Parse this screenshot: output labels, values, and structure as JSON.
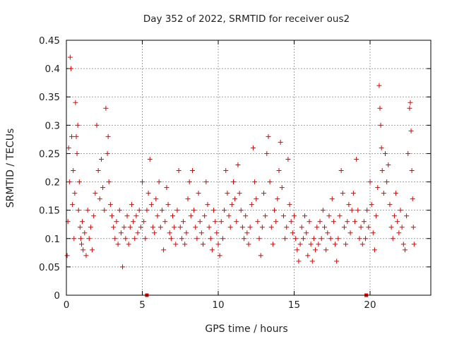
{
  "chart_data": {
    "type": "scatter",
    "title": "Day 352 of 2022, SRMTID for receiver ous2",
    "xlabel": "GPS time / hours",
    "ylabel": "SRMTID / TECUs",
    "xlim": [
      0,
      24
    ],
    "ylim": [
      0,
      0.45
    ],
    "xticks": [
      0,
      5,
      10,
      15,
      20
    ],
    "yticks": [
      0,
      0.05,
      0.1,
      0.15,
      0.2,
      0.25,
      0.3,
      0.35,
      0.4,
      0.45
    ],
    "xtick_labels": [
      "0",
      "5",
      "10",
      "15",
      "20"
    ],
    "ytick_labels": [
      "0",
      "0.05",
      "0.1",
      "0.15",
      "0.2",
      "0.25",
      "0.3",
      "0.35",
      "0.4",
      "0.45"
    ],
    "grid": true,
    "marker": "+",
    "color": "#e00000",
    "baseline_markers_x": [
      5.3,
      19.75
    ],
    "series": [
      {
        "name": "ous2",
        "points": [
          [
            0.05,
            0.07
          ],
          [
            0.1,
            0.13
          ],
          [
            0.15,
            0.26
          ],
          [
            0.2,
            0.2
          ],
          [
            0.25,
            0.42
          ],
          [
            0.3,
            0.4
          ],
          [
            0.35,
            0.28
          ],
          [
            0.4,
            0.16
          ],
          [
            0.45,
            0.22
          ],
          [
            0.5,
            0.1
          ],
          [
            0.55,
            0.18
          ],
          [
            0.6,
            0.34
          ],
          [
            0.65,
            0.28
          ],
          [
            0.7,
            0.25
          ],
          [
            0.75,
            0.3
          ],
          [
            0.8,
            0.15
          ],
          [
            0.85,
            0.2
          ],
          [
            0.9,
            0.12
          ],
          [
            0.95,
            0.1
          ],
          [
            1.0,
            0.09
          ],
          [
            1.05,
            0.13
          ],
          [
            1.1,
            0.08
          ],
          [
            1.2,
            0.11
          ],
          [
            1.3,
            0.07
          ],
          [
            1.4,
            0.15
          ],
          [
            1.5,
            0.1
          ],
          [
            1.6,
            0.12
          ],
          [
            1.7,
            0.08
          ],
          [
            1.8,
            0.14
          ],
          [
            1.9,
            0.18
          ],
          [
            2.0,
            0.3
          ],
          [
            2.1,
            0.22
          ],
          [
            2.2,
            0.17
          ],
          [
            2.3,
            0.24
          ],
          [
            2.4,
            0.19
          ],
          [
            2.5,
            0.15
          ],
          [
            2.6,
            0.33
          ],
          [
            2.7,
            0.25
          ],
          [
            2.75,
            0.28
          ],
          [
            2.8,
            0.2
          ],
          [
            2.9,
            0.16
          ],
          [
            3.0,
            0.14
          ],
          [
            3.1,
            0.12
          ],
          [
            3.2,
            0.1
          ],
          [
            3.3,
            0.13
          ],
          [
            3.4,
            0.09
          ],
          [
            3.5,
            0.15
          ],
          [
            3.6,
            0.11
          ],
          [
            3.7,
            0.05
          ],
          [
            3.8,
            0.12
          ],
          [
            3.9,
            0.1
          ],
          [
            4.0,
            0.14
          ],
          [
            4.1,
            0.09
          ],
          [
            4.2,
            0.12
          ],
          [
            4.3,
            0.16
          ],
          [
            4.4,
            0.13
          ],
          [
            4.5,
            0.1
          ],
          [
            4.6,
            0.14
          ],
          [
            4.7,
            0.11
          ],
          [
            4.8,
            0.15
          ],
          [
            4.9,
            0.12
          ],
          [
            5.0,
            0.2
          ],
          [
            5.1,
            0.13
          ],
          [
            5.2,
            0.1
          ],
          [
            5.3,
            0.15
          ],
          [
            5.4,
            0.18
          ],
          [
            5.5,
            0.24
          ],
          [
            5.6,
            0.16
          ],
          [
            5.7,
            0.12
          ],
          [
            5.8,
            0.11
          ],
          [
            5.9,
            0.17
          ],
          [
            6.0,
            0.14
          ],
          [
            6.1,
            0.2
          ],
          [
            6.2,
            0.12
          ],
          [
            6.3,
            0.15
          ],
          [
            6.4,
            0.08
          ],
          [
            6.5,
            0.13
          ],
          [
            6.6,
            0.19
          ],
          [
            6.7,
            0.16
          ],
          [
            6.8,
            0.11
          ],
          [
            6.9,
            0.1
          ],
          [
            7.0,
            0.14
          ],
          [
            7.1,
            0.12
          ],
          [
            7.2,
            0.09
          ],
          [
            7.3,
            0.15
          ],
          [
            7.4,
            0.22
          ],
          [
            7.5,
            0.12
          ],
          [
            7.6,
            0.1
          ],
          [
            7.7,
            0.13
          ],
          [
            7.8,
            0.09
          ],
          [
            7.9,
            0.11
          ],
          [
            8.0,
            0.17
          ],
          [
            8.1,
            0.2
          ],
          [
            8.2,
            0.14
          ],
          [
            8.3,
            0.22
          ],
          [
            8.4,
            0.15
          ],
          [
            8.5,
            0.12
          ],
          [
            8.6,
            0.1
          ],
          [
            8.7,
            0.18
          ],
          [
            8.8,
            0.13
          ],
          [
            8.9,
            0.11
          ],
          [
            9.0,
            0.09
          ],
          [
            9.1,
            0.14
          ],
          [
            9.2,
            0.2
          ],
          [
            9.3,
            0.16
          ],
          [
            9.4,
            0.12
          ],
          [
            9.5,
            0.1
          ],
          [
            9.6,
            0.08
          ],
          [
            9.7,
            0.15
          ],
          [
            9.8,
            0.13
          ],
          [
            9.9,
            0.11
          ],
          [
            10.0,
            0.09
          ],
          [
            10.1,
            0.07
          ],
          [
            10.2,
            0.13
          ],
          [
            10.3,
            0.1
          ],
          [
            10.4,
            0.15
          ],
          [
            10.5,
            0.22
          ],
          [
            10.6,
            0.18
          ],
          [
            10.7,
            0.14
          ],
          [
            10.8,
            0.12
          ],
          [
            10.9,
            0.16
          ],
          [
            11.0,
            0.2
          ],
          [
            11.1,
            0.17
          ],
          [
            11.2,
            0.13
          ],
          [
            11.3,
            0.23
          ],
          [
            11.4,
            0.18
          ],
          [
            11.5,
            0.15
          ],
          [
            11.6,
            0.12
          ],
          [
            11.7,
            0.1
          ],
          [
            11.8,
            0.14
          ],
          [
            11.9,
            0.11
          ],
          [
            12.0,
            0.09
          ],
          [
            12.1,
            0.12
          ],
          [
            12.2,
            0.16
          ],
          [
            12.3,
            0.26
          ],
          [
            12.4,
            0.2
          ],
          [
            12.5,
            0.17
          ],
          [
            12.6,
            0.13
          ],
          [
            12.7,
            0.1
          ],
          [
            12.8,
            0.07
          ],
          [
            12.9,
            0.12
          ],
          [
            13.0,
            0.18
          ],
          [
            13.1,
            0.14
          ],
          [
            13.2,
            0.25
          ],
          [
            13.3,
            0.28
          ],
          [
            13.4,
            0.2
          ],
          [
            13.5,
            0.12
          ],
          [
            13.6,
            0.09
          ],
          [
            13.7,
            0.15
          ],
          [
            13.8,
            0.13
          ],
          [
            13.9,
            0.17
          ],
          [
            14.0,
            0.22
          ],
          [
            14.1,
            0.27
          ],
          [
            14.2,
            0.19
          ],
          [
            14.3,
            0.14
          ],
          [
            14.4,
            0.1
          ],
          [
            14.5,
            0.12
          ],
          [
            14.6,
            0.24
          ],
          [
            14.7,
            0.16
          ],
          [
            14.8,
            0.13
          ],
          [
            14.9,
            0.11
          ],
          [
            15.0,
            0.14
          ],
          [
            15.1,
            0.1
          ],
          [
            15.2,
            0.08
          ],
          [
            15.3,
            0.06
          ],
          [
            15.4,
            0.09
          ],
          [
            15.5,
            0.12
          ],
          [
            15.6,
            0.1
          ],
          [
            15.7,
            0.14
          ],
          [
            15.8,
            0.11
          ],
          [
            15.9,
            0.07
          ],
          [
            16.0,
            0.13
          ],
          [
            16.1,
            0.09
          ],
          [
            16.2,
            0.06
          ],
          [
            16.3,
            0.1
          ],
          [
            16.4,
            0.08
          ],
          [
            16.5,
            0.12
          ],
          [
            16.6,
            0.09
          ],
          [
            16.7,
            0.13
          ],
          [
            16.8,
            0.1
          ],
          [
            16.9,
            0.15
          ],
          [
            17.0,
            0.12
          ],
          [
            17.1,
            0.08
          ],
          [
            17.2,
            0.11
          ],
          [
            17.3,
            0.14
          ],
          [
            17.4,
            0.1
          ],
          [
            17.5,
            0.17
          ],
          [
            17.6,
            0.13
          ],
          [
            17.7,
            0.09
          ],
          [
            17.8,
            0.06
          ],
          [
            17.9,
            0.1
          ],
          [
            18.0,
            0.14
          ],
          [
            18.1,
            0.22
          ],
          [
            18.2,
            0.18
          ],
          [
            18.3,
            0.12
          ],
          [
            18.4,
            0.09
          ],
          [
            18.5,
            0.13
          ],
          [
            18.6,
            0.16
          ],
          [
            18.7,
            0.11
          ],
          [
            18.8,
            0.15
          ],
          [
            18.9,
            0.18
          ],
          [
            19.0,
            0.13
          ],
          [
            19.1,
            0.24
          ],
          [
            19.2,
            0.15
          ],
          [
            19.3,
            0.1
          ],
          [
            19.4,
            0.12
          ],
          [
            19.5,
            0.09
          ],
          [
            19.6,
            0.13
          ],
          [
            19.7,
            0.1
          ],
          [
            19.8,
            0.15
          ],
          [
            19.9,
            0.12
          ],
          [
            20.0,
            0.2
          ],
          [
            20.1,
            0.16
          ],
          [
            20.2,
            0.11
          ],
          [
            20.3,
            0.08
          ],
          [
            20.4,
            0.14
          ],
          [
            20.5,
            0.19
          ],
          [
            20.6,
            0.37
          ],
          [
            20.65,
            0.33
          ],
          [
            20.7,
            0.3
          ],
          [
            20.75,
            0.26
          ],
          [
            20.8,
            0.22
          ],
          [
            20.9,
            0.18
          ],
          [
            21.0,
            0.25
          ],
          [
            21.1,
            0.2
          ],
          [
            21.2,
            0.23
          ],
          [
            21.3,
            0.16
          ],
          [
            21.4,
            0.12
          ],
          [
            21.5,
            0.1
          ],
          [
            21.6,
            0.14
          ],
          [
            21.7,
            0.18
          ],
          [
            21.8,
            0.13
          ],
          [
            21.9,
            0.11
          ],
          [
            22.0,
            0.15
          ],
          [
            22.1,
            0.12
          ],
          [
            22.2,
            0.09
          ],
          [
            22.3,
            0.08
          ],
          [
            22.4,
            0.14
          ],
          [
            22.5,
            0.25
          ],
          [
            22.6,
            0.33
          ],
          [
            22.65,
            0.34
          ],
          [
            22.7,
            0.29
          ],
          [
            22.75,
            0.22
          ],
          [
            22.8,
            0.17
          ],
          [
            22.85,
            0.12
          ],
          [
            22.9,
            0.09
          ]
        ]
      }
    ]
  }
}
